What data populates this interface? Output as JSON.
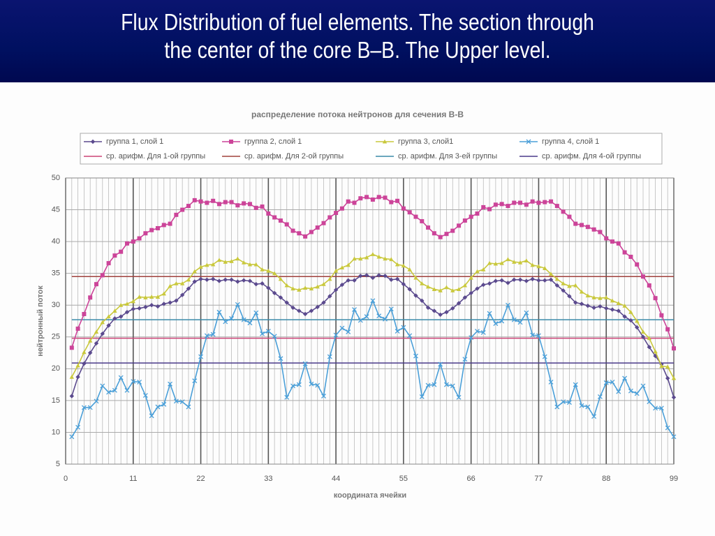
{
  "slide": {
    "title_lines": [
      "Flux Distribution of fuel elements. The section through",
      "the center of the core B–B. The Upper level."
    ]
  },
  "chart_data": {
    "type": "line",
    "title": "распределение потока нейтронов для сечения В-В",
    "x_label": "координата ячейки",
    "y_label": "нейтронный поток",
    "xlim": [
      0,
      99
    ],
    "xticks": [
      0,
      11,
      22,
      33,
      44,
      55,
      66,
      77,
      88,
      99
    ],
    "ylim": [
      5,
      50
    ],
    "yticks": [
      5,
      10,
      15,
      20,
      25,
      30,
      35,
      40,
      45,
      50
    ],
    "grid": true,
    "minor_x_grid": true,
    "legend": "top",
    "x": [
      1,
      2,
      3,
      4,
      5,
      6,
      7,
      8,
      9,
      10,
      11,
      12,
      13,
      14,
      15,
      16,
      17,
      18,
      19,
      20,
      21,
      22,
      23,
      24,
      25,
      26,
      27,
      28,
      29,
      30,
      31,
      32,
      33,
      34,
      35,
      36,
      37,
      38,
      39,
      40,
      41,
      42,
      43,
      44,
      45,
      46,
      47,
      48,
      49,
      50,
      51,
      52,
      53,
      54,
      55,
      56,
      57,
      58,
      59,
      60,
      61,
      62,
      63,
      64,
      65,
      66,
      67,
      68,
      69,
      70,
      71,
      72,
      73,
      74,
      75,
      76,
      77,
      78,
      79,
      80,
      81,
      82,
      83,
      84,
      85,
      86,
      87,
      88,
      89,
      90,
      91,
      92,
      93,
      94,
      95,
      96,
      97,
      98,
      99
    ],
    "series": [
      {
        "name": "группа 1, слой 1",
        "color": "#5b4a8e",
        "marker": "diamond",
        "values": [
          15.7,
          18.7,
          20.8,
          22.5,
          24,
          25.5,
          26.8,
          27.9,
          28.2,
          28.9,
          29.4,
          29.5,
          29.7,
          30,
          29.8,
          30.2,
          30.4,
          30.7,
          31.6,
          32.6,
          33.7,
          34.1,
          34,
          34.1,
          33.8,
          34,
          34,
          33.7,
          33.9,
          33.8,
          33.3,
          33.4,
          32.7,
          31.9,
          31.2,
          30.4,
          29.6,
          29.1,
          28.6,
          29.1,
          29.7,
          30.4,
          31.4,
          32.4,
          33.2,
          33.9,
          33.9,
          34.6,
          34.7,
          34.3,
          34.7,
          34.6,
          34,
          34.1,
          33.3,
          32.5,
          31.5,
          30.7,
          29.6,
          29.1,
          28.5,
          28.9,
          29.5,
          30.3,
          31.2,
          31.9,
          32.6,
          33.2,
          33.4,
          33.8,
          33.9,
          33.5,
          34,
          34,
          33.8,
          34.1,
          33.9,
          33.9,
          34,
          33.1,
          32.3,
          31.4,
          30.4,
          30.2,
          29.9,
          29.6,
          29.8,
          29.5,
          29.3,
          29.1,
          28.2,
          27.6,
          26.5,
          25,
          23.4,
          22,
          20.7,
          18.5,
          15.5
        ]
      },
      {
        "name": "группа 2, слой 1",
        "color": "#cc4499",
        "marker": "square",
        "values": [
          23.3,
          26.3,
          28.6,
          31.2,
          33.3,
          34.7,
          36.6,
          37.8,
          38.4,
          39.7,
          40,
          40.5,
          41.3,
          41.8,
          42.1,
          42.6,
          42.8,
          44.2,
          45,
          45.6,
          46.5,
          46.3,
          46.1,
          46.4,
          45.9,
          46.2,
          46.2,
          45.7,
          46,
          45.9,
          45.3,
          45.5,
          44.4,
          43.8,
          43.3,
          42.7,
          41.7,
          41.3,
          40.8,
          41.5,
          42.2,
          42.9,
          43.8,
          44.5,
          45.2,
          46.3,
          46.1,
          46.8,
          47,
          46.6,
          47,
          46.9,
          46.2,
          46.4,
          45.2,
          44.6,
          43.9,
          43.2,
          42.2,
          41.3,
          40.7,
          41.2,
          41.7,
          42.5,
          43.3,
          43.9,
          44.4,
          45.4,
          45.1,
          45.8,
          45.9,
          45.6,
          46.1,
          46.1,
          45.8,
          46.3,
          46.1,
          46.2,
          46.3,
          45.6,
          44.7,
          43.9,
          42.8,
          42.6,
          42.3,
          41.9,
          41.5,
          40.5,
          40,
          39.7,
          38.3,
          37.6,
          36.4,
          34.5,
          33.1,
          31.1,
          28.4,
          26.2,
          23.2
        ]
      },
      {
        "name": "группа 3, слой1",
        "color": "#c9c83c",
        "marker": "triangle",
        "values": [
          18.7,
          20.5,
          22.6,
          24.4,
          25.8,
          27.3,
          28.2,
          29.1,
          30,
          30.2,
          30.6,
          31.3,
          31.2,
          31.3,
          31.3,
          31.8,
          33,
          33.4,
          33.4,
          34,
          35.3,
          36,
          36.3,
          36.4,
          37.1,
          36.8,
          36.9,
          37.3,
          36.7,
          36.4,
          36.4,
          35.6,
          35.4,
          35,
          34.1,
          33.1,
          32.6,
          32.4,
          32.7,
          32.6,
          32.9,
          33.3,
          34.1,
          35.4,
          35.9,
          36.3,
          37.3,
          37.3,
          37.5,
          38,
          37.6,
          37.3,
          37.2,
          36.4,
          36.2,
          35.6,
          34.3,
          33.4,
          32.9,
          32.5,
          32.3,
          32.8,
          32.3,
          32.5,
          33.1,
          34.3,
          35.3,
          35.6,
          36.6,
          36.5,
          36.6,
          37.2,
          36.8,
          36.7,
          37,
          36.3,
          36.1,
          35.8,
          34.9,
          34.1,
          33.4,
          33,
          33.1,
          32.1,
          31.5,
          31.2,
          31.1,
          31.2,
          30.7,
          30.3,
          29.9,
          28.9,
          27.5,
          25.8,
          24.8,
          22.7,
          20.4,
          20.3,
          18.5
        ]
      },
      {
        "name": "группа 4, слой 1",
        "color": "#4a9fd8",
        "marker": "x",
        "values": [
          9.3,
          10.8,
          13.9,
          13.9,
          14.9,
          17.3,
          16.3,
          16.6,
          18.6,
          16.6,
          18,
          17.9,
          15.8,
          12.6,
          14,
          14.4,
          17.6,
          14.9,
          14.8,
          14,
          18.1,
          21.9,
          25.2,
          25.4,
          28.9,
          27.4,
          27.9,
          30.1,
          27.7,
          27.2,
          28.8,
          25.5,
          25.9,
          25.1,
          21.6,
          15.5,
          17.3,
          17.5,
          20.8,
          17.6,
          17.4,
          15.7,
          21.9,
          25.3,
          26.4,
          25.8,
          29.3,
          27.6,
          28.2,
          30.7,
          28.3,
          27.8,
          29.4,
          25.9,
          26.5,
          25.2,
          22,
          15.6,
          17.4,
          17.5,
          20.7,
          17.5,
          17.3,
          15.5,
          21.5,
          24.9,
          25.9,
          25.7,
          28.7,
          27.1,
          27.5,
          30,
          27.7,
          27.3,
          28.8,
          25.3,
          25.2,
          21.9,
          17.9,
          14,
          14.8,
          14.7,
          17.5,
          14.2,
          14,
          12.5,
          15.6,
          17.8,
          17.9,
          16.4,
          18.5,
          16.5,
          16.1,
          17.3,
          14.8,
          13.8,
          13.8,
          10.7,
          9.3
        ]
      }
    ],
    "reference_lines": [
      {
        "name": "ср. арифм. Для 1-ой группы",
        "color": "#cc4477",
        "value": 24.8
      },
      {
        "name": "ср. арифм. Для 2-ой группы",
        "color": "#a0403c",
        "value": 34.5
      },
      {
        "name": "ср. арифм. Для 3-ей группы",
        "color": "#3a8aa8",
        "value": 27.7
      },
      {
        "name": "ср. арифм. Для 4-ой группы",
        "color": "#4a3a8a",
        "value": 20.9
      }
    ]
  }
}
